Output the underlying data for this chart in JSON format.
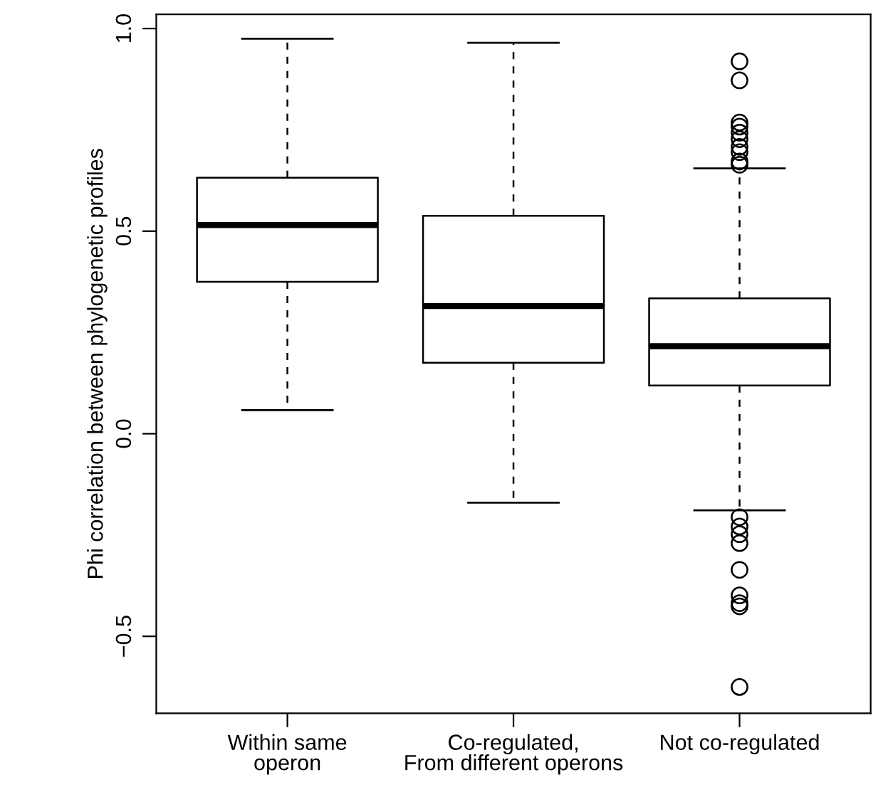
{
  "chart_data": {
    "type": "box",
    "ylabel": "Phi correlation between phylogenetic profiles",
    "categories": [
      "Within same\noperon",
      "Co-regulated,\nFrom different operons",
      "Not co-regulated"
    ],
    "boxes": [
      {
        "low": 0.058,
        "q1": 0.375,
        "median": 0.515,
        "q3": 0.632,
        "high": 0.975
      },
      {
        "low": -0.17,
        "q1": 0.175,
        "median": 0.315,
        "q3": 0.538,
        "high": 0.965
      },
      {
        "low": -0.189,
        "q1": 0.119,
        "median": 0.216,
        "q3": 0.334,
        "high": 0.655,
        "outliers": [
          0.919,
          0.872,
          0.768,
          0.758,
          0.743,
          0.727,
          0.708,
          0.695,
          0.672,
          0.664,
          -0.206,
          -0.229,
          -0.248,
          -0.27,
          -0.336,
          -0.399,
          -0.418,
          -0.426,
          -0.625
        ]
      }
    ],
    "ylim": [
      -0.69,
      1.035
    ],
    "yticks": [
      {
        "value": -0.5,
        "label": "−0.5"
      },
      {
        "value": 0,
        "label": "0.0"
      },
      0.5,
      {
        "value": 1,
        "label": "1.0"
      }
    ],
    "grid": false
  }
}
